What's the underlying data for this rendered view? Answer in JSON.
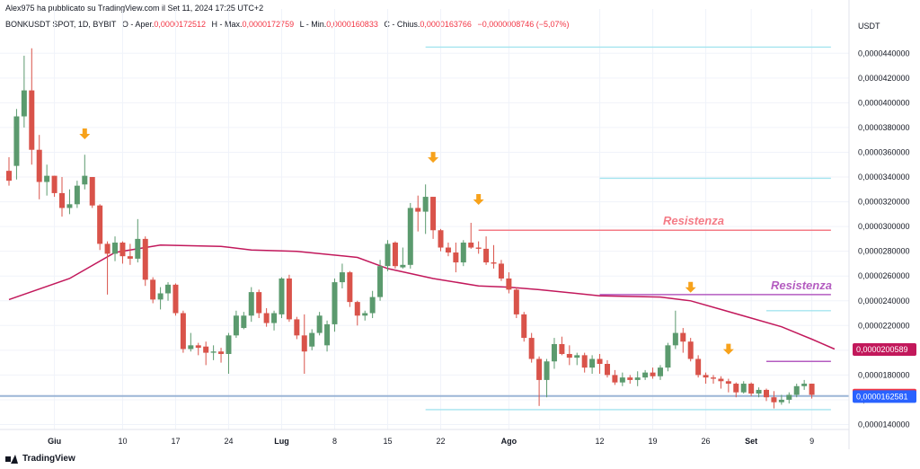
{
  "header": {
    "published_line": "Alex975 ha pubblicato su TradingView.com il Set 11, 2024 17:25 UTC+2",
    "symbol": "BONKUSDT SPOT, 1D, BYBIT",
    "open_label": "O - Aper.",
    "open_value": "0,0000172512",
    "high_label": "H - Max.",
    "high_value": "0,0000172759",
    "low_label": "L - Min.",
    "low_value": "0,0000160833",
    "close_label": "C - Chius.",
    "close_value": "0,0000163766",
    "change_value": "−0,0000008746 (−5,07%)"
  },
  "currency": "USDT",
  "footer": {
    "logo_text": "TradingView"
  },
  "colors": {
    "up": "#5b9a6e",
    "down": "#d9534a",
    "ma": "#c2185b",
    "resistance_red": "#f47b86",
    "resistance_purple": "#b45cc0",
    "support_cyan": "#a4e4ef",
    "arrow": "#f7a21b"
  },
  "chart_data": {
    "type": "candlestick",
    "title": "",
    "ylim": [
      1.36e-05,
      4.54e-05
    ],
    "y_ticks": [
      {
        "v": 1.4e-05,
        "label": "0,0000140000"
      },
      {
        "v": 1.6e-05,
        "label": "0,0000160000"
      },
      {
        "v": 1.8e-05,
        "label": "0,0000180000"
      },
      {
        "v": 2e-05,
        "label": "0,0000200000"
      },
      {
        "v": 2.2e-05,
        "label": "0,0000220000"
      },
      {
        "v": 2.4e-05,
        "label": "0,0000240000"
      },
      {
        "v": 2.6e-05,
        "label": "0,0000260000"
      },
      {
        "v": 2.8e-05,
        "label": "0,0000280000"
      },
      {
        "v": 3e-05,
        "label": "0,0000300000"
      },
      {
        "v": 3.2e-05,
        "label": "0,0000320000"
      },
      {
        "v": 3.4e-05,
        "label": "0,0000340000"
      },
      {
        "v": 3.6e-05,
        "label": "0,0000360000"
      },
      {
        "v": 3.8e-05,
        "label": "0,0000380000"
      },
      {
        "v": 4e-05,
        "label": "0,0000400000"
      },
      {
        "v": 4.2e-05,
        "label": "0,0000420000"
      },
      {
        "v": 4.4e-05,
        "label": "0,0000440000"
      }
    ],
    "x_ticks": [
      {
        "i": 6,
        "label": "Giu"
      },
      {
        "i": 15,
        "label": "10"
      },
      {
        "i": 22,
        "label": "17"
      },
      {
        "i": 29,
        "label": "24"
      },
      {
        "i": 36,
        "label": "Lug"
      },
      {
        "i": 43,
        "label": "8"
      },
      {
        "i": 50,
        "label": "15"
      },
      {
        "i": 57,
        "label": "22"
      },
      {
        "i": 66,
        "label": "Ago"
      },
      {
        "i": 78,
        "label": "12"
      },
      {
        "i": 85,
        "label": "19"
      },
      {
        "i": 92,
        "label": "26"
      },
      {
        "i": 98,
        "label": "Set"
      },
      {
        "i": 106,
        "label": "9"
      }
    ],
    "candles": [
      [
        3.45e-05,
        3.56e-05,
        3.33e-05,
        3.37e-05
      ],
      [
        3.49e-05,
        3.95e-05,
        3.38e-05,
        3.89e-05
      ],
      [
        3.89e-05,
        4.38e-05,
        3.8e-05,
        4.1e-05
      ],
      [
        4.1e-05,
        4.44e-05,
        3.5e-05,
        3.62e-05
      ],
      [
        3.62e-05,
        3.74e-05,
        3.22e-05,
        3.36e-05
      ],
      [
        3.36e-05,
        3.5e-05,
        3.25e-05,
        3.41e-05
      ],
      [
        3.41e-05,
        3.41e-05,
        3.24e-05,
        3.27e-05
      ],
      [
        3.27e-05,
        3.4e-05,
        3.08e-05,
        3.15e-05
      ],
      [
        3.15e-05,
        3.3e-05,
        3.1e-05,
        3.18e-05
      ],
      [
        3.18e-05,
        3.37e-05,
        3.15e-05,
        3.33e-05
      ],
      [
        3.34e-05,
        3.58e-05,
        3.3e-05,
        3.41e-05
      ],
      [
        3.4e-05,
        3.4e-05,
        3.15e-05,
        3.17e-05
      ],
      [
        3.17e-05,
        3.18e-05,
        2.81e-05,
        2.86e-05
      ],
      [
        2.86e-05,
        2.88e-05,
        2.45e-05,
        2.78e-05
      ],
      [
        2.78e-05,
        2.92e-05,
        2.72e-05,
        2.87e-05
      ],
      [
        2.87e-05,
        2.88e-05,
        2.7e-05,
        2.76e-05
      ],
      [
        2.76e-05,
        2.86e-05,
        2.69e-05,
        2.74e-05
      ],
      [
        2.74e-05,
        3.06e-05,
        2.71e-05,
        2.9e-05
      ],
      [
        2.9e-05,
        2.92e-05,
        2.52e-05,
        2.57e-05
      ],
      [
        2.57e-05,
        2.59e-05,
        2.38e-05,
        2.41e-05
      ],
      [
        2.41e-05,
        2.51e-05,
        2.33e-05,
        2.46e-05
      ],
      [
        2.46e-05,
        2.55e-05,
        2.4e-05,
        2.53e-05
      ],
      [
        2.53e-05,
        2.54e-05,
        2.28e-05,
        2.3e-05
      ],
      [
        2.3e-05,
        2.32e-05,
        1.98e-05,
        2.01e-05
      ],
      [
        2.01e-05,
        2.14e-05,
        1.99e-05,
        2.04e-05
      ],
      [
        2.04e-05,
        2.06e-05,
        1.96e-05,
        2.02e-05
      ],
      [
        2.03e-05,
        2.07e-05,
        1.88e-05,
        1.98e-05
      ],
      [
        1.98e-05,
        2.04e-05,
        1.92e-05,
        1.99e-05
      ],
      [
        1.99e-05,
        2.02e-05,
        1.9e-05,
        1.97e-05
      ],
      [
        1.97e-05,
        2.14e-05,
        1.81e-05,
        2.12e-05
      ],
      [
        2.12e-05,
        2.32e-05,
        2.1e-05,
        2.28e-05
      ],
      [
        2.18e-05,
        2.31e-05,
        2.17e-05,
        2.28e-05
      ],
      [
        2.28e-05,
        2.51e-05,
        2.23e-05,
        2.47e-05
      ],
      [
        2.47e-05,
        2.49e-05,
        2.26e-05,
        2.3e-05
      ],
      [
        2.3e-05,
        2.34e-05,
        2.19e-05,
        2.22e-05
      ],
      [
        2.22e-05,
        2.32e-05,
        2.16e-05,
        2.3e-05
      ],
      [
        2.29e-05,
        2.59e-05,
        2.26e-05,
        2.58e-05
      ],
      [
        2.58e-05,
        2.61e-05,
        2.23e-05,
        2.25e-05
      ],
      [
        2.25e-05,
        2.27e-05,
        2.09e-05,
        2.12e-05
      ],
      [
        2.12e-05,
        2.29e-05,
        1.81e-05,
        1.99e-05
      ],
      [
        2.03e-05,
        2.17e-05,
        2e-05,
        2.14e-05
      ],
      [
        2.14e-05,
        2.31e-05,
        2.12e-05,
        2.28e-05
      ],
      [
        2.04e-05,
        2.24e-05,
        1.99e-05,
        2.21e-05
      ],
      [
        2.21e-05,
        2.58e-05,
        2.15e-05,
        2.55e-05
      ],
      [
        2.55e-05,
        2.7e-05,
        2.5e-05,
        2.63e-05
      ],
      [
        2.63e-05,
        2.64e-05,
        2.35e-05,
        2.39e-05
      ],
      [
        2.39e-05,
        2.4e-05,
        2.2e-05,
        2.28e-05
      ],
      [
        2.28e-05,
        2.32e-05,
        2.24e-05,
        2.3e-05
      ],
      [
        2.3e-05,
        2.48e-05,
        2.26e-05,
        2.43e-05
      ],
      [
        2.43e-05,
        2.73e-05,
        2.4e-05,
        2.68e-05
      ],
      [
        2.68e-05,
        2.89e-05,
        2.64e-05,
        2.86e-05
      ],
      [
        2.87e-05,
        2.88e-05,
        2.66e-05,
        2.68e-05
      ],
      [
        2.67e-05,
        2.83e-05,
        2.66e-05,
        2.69e-05
      ],
      [
        2.69e-05,
        3.19e-05,
        2.66e-05,
        3.15e-05
      ],
      [
        3.15e-05,
        3.25e-05,
        2.96e-05,
        3.12e-05
      ],
      [
        3.12e-05,
        3.34e-05,
        2.94e-05,
        3.24e-05
      ],
      [
        3.24e-05,
        3.24e-05,
        2.9e-05,
        2.97e-05
      ],
      [
        2.97e-05,
        2.98e-05,
        2.8e-05,
        2.83e-05
      ],
      [
        2.83e-05,
        2.87e-05,
        2.76e-05,
        2.79e-05
      ],
      [
        2.79e-05,
        2.87e-05,
        2.63e-05,
        2.71e-05
      ],
      [
        2.71e-05,
        2.89e-05,
        2.68e-05,
        2.87e-05
      ],
      [
        2.87e-05,
        3.03e-05,
        2.82e-05,
        2.83e-05
      ],
      [
        2.83e-05,
        2.88e-05,
        2.78e-05,
        2.82e-05
      ],
      [
        2.82e-05,
        2.92e-05,
        2.69e-05,
        2.71e-05
      ],
      [
        2.71e-05,
        2.85e-05,
        2.66e-05,
        2.7e-05
      ],
      [
        2.7e-05,
        2.73e-05,
        2.56e-05,
        2.58e-05
      ],
      [
        2.58e-05,
        2.63e-05,
        2.46e-05,
        2.49e-05
      ],
      [
        2.49e-05,
        2.51e-05,
        2.26e-05,
        2.29e-05
      ],
      [
        2.29e-05,
        2.31e-05,
        2.07e-05,
        2.1e-05
      ],
      [
        2.1e-05,
        2.14e-05,
        1.9e-05,
        1.93e-05
      ],
      [
        1.93e-05,
        1.95e-05,
        1.55e-05,
        1.76e-05
      ],
      [
        1.76e-05,
        1.93e-05,
        1.62e-05,
        1.91e-05
      ],
      [
        1.91e-05,
        2.1e-05,
        1.85e-05,
        2.05e-05
      ],
      [
        2.05e-05,
        2.11e-05,
        1.96e-05,
        1.97e-05
      ],
      [
        1.97e-05,
        2.04e-05,
        1.88e-05,
        1.94e-05
      ],
      [
        1.94e-05,
        1.98e-05,
        1.88e-05,
        1.96e-05
      ],
      [
        1.96e-05,
        1.98e-05,
        1.82e-05,
        1.86e-05
      ],
      [
        1.86e-05,
        1.96e-05,
        1.81e-05,
        1.93e-05
      ],
      [
        1.93e-05,
        1.97e-05,
        1.81e-05,
        1.89e-05
      ],
      [
        1.89e-05,
        1.92e-05,
        1.78e-05,
        1.8e-05
      ],
      [
        1.8e-05,
        1.84e-05,
        1.72e-05,
        1.74e-05
      ],
      [
        1.74e-05,
        1.82e-05,
        1.71e-05,
        1.78e-05
      ],
      [
        1.78e-05,
        1.8e-05,
        1.73e-05,
        1.76e-05
      ],
      [
        1.76e-05,
        1.83e-05,
        1.71e-05,
        1.78e-05
      ],
      [
        1.78e-05,
        1.84e-05,
        1.76e-05,
        1.82e-05
      ],
      [
        1.82e-05,
        1.86e-05,
        1.77e-05,
        1.79e-05
      ],
      [
        1.79e-05,
        1.88e-05,
        1.76e-05,
        1.86e-05
      ],
      [
        1.86e-05,
        2.06e-05,
        1.83e-05,
        2.04e-05
      ],
      [
        2.04e-05,
        2.32e-05,
        2.01e-05,
        2.14e-05
      ],
      [
        2.14e-05,
        2.18e-05,
        1.98e-05,
        2.07e-05
      ],
      [
        2.07e-05,
        2.1e-05,
        1.91e-05,
        1.93e-05
      ],
      [
        1.93e-05,
        1.96e-05,
        1.78e-05,
        1.8e-05
      ],
      [
        1.8e-05,
        1.82e-05,
        1.73e-05,
        1.78e-05
      ],
      [
        1.78e-05,
        1.8e-05,
        1.73e-05,
        1.77e-05
      ],
      [
        1.77e-05,
        1.79e-05,
        1.69e-05,
        1.75e-05
      ],
      [
        1.75e-05,
        1.77e-05,
        1.66e-05,
        1.73e-05
      ],
      [
        1.73e-05,
        1.74e-05,
        1.62e-05,
        1.66e-05
      ],
      [
        1.66e-05,
        1.75e-05,
        1.65e-05,
        1.73e-05
      ],
      [
        1.73e-05,
        1.74e-05,
        1.63e-05,
        1.65e-05
      ],
      [
        1.65e-05,
        1.7e-05,
        1.62e-05,
        1.68e-05
      ],
      [
        1.68e-05,
        1.69e-05,
        1.59e-05,
        1.62e-05
      ],
      [
        1.62e-05,
        1.67e-05,
        1.53e-05,
        1.58e-05
      ],
      [
        1.58e-05,
        1.64e-05,
        1.56e-05,
        1.6e-05
      ],
      [
        1.6e-05,
        1.66e-05,
        1.57e-05,
        1.64e-05
      ],
      [
        1.64e-05,
        1.73e-05,
        1.62e-05,
        1.71e-05
      ],
      [
        1.71e-05,
        1.76e-05,
        1.68e-05,
        1.73e-05
      ],
      [
        1.73e-05,
        1.73e-05,
        1.61e-05,
        1.64e-05
      ]
    ],
    "moving_average": {
      "keys": [
        [
          0,
          2.41e-05
        ],
        [
          8,
          2.58e-05
        ],
        [
          14,
          2.79e-05
        ],
        [
          20,
          2.85e-05
        ],
        [
          28,
          2.84e-05
        ],
        [
          32,
          2.81e-05
        ],
        [
          38,
          2.8e-05
        ],
        [
          46,
          2.75e-05
        ],
        [
          50,
          2.66e-05
        ],
        [
          56,
          2.58e-05
        ],
        [
          62,
          2.52e-05
        ],
        [
          66,
          2.51e-05
        ],
        [
          70,
          2.49e-05
        ],
        [
          78,
          2.44e-05
        ],
        [
          86,
          2.43e-05
        ],
        [
          90,
          2.4e-05
        ],
        [
          94,
          2.33e-05
        ],
        [
          98,
          2.26e-05
        ],
        [
          102,
          2.19e-05
        ],
        [
          106,
          2.09e-05
        ],
        [
          109,
          2.01e-05
        ]
      ]
    },
    "lines": [
      {
        "kind": "support",
        "y": 4.45e-05,
        "i_from": 55,
        "i_to": 109
      },
      {
        "kind": "support",
        "y": 3.39e-05,
        "i_from": 78,
        "i_to": 109
      },
      {
        "kind": "resistance",
        "y": 2.97e-05,
        "i_from": 62,
        "i_to": 109,
        "label": "Resistenza"
      },
      {
        "kind": "resistance2",
        "y": 2.45e-05,
        "i_from": 78,
        "i_to": 109,
        "label": "Resistenza"
      },
      {
        "kind": "support",
        "y": 2.32e-05,
        "i_from": 100,
        "i_to": 109
      },
      {
        "kind": "resistance2",
        "y": 1.91e-05,
        "i_from": 100,
        "i_to": 109
      },
      {
        "kind": "support",
        "y": 1.52e-05,
        "i_from": 55,
        "i_to": 109
      },
      {
        "kind": "base",
        "y": 1.63e-05,
        "i_from": 0,
        "i_to": 109
      }
    ],
    "arrows": [
      {
        "i": 10,
        "y": 3.72e-05
      },
      {
        "i": 56,
        "y": 3.53e-05
      },
      {
        "i": 62,
        "y": 3.19e-05
      },
      {
        "i": 90,
        "y": 2.48e-05
      },
      {
        "i": 95,
        "y": 1.98e-05
      }
    ],
    "price_labels": [
      {
        "y": 2.00589e-05,
        "label": "0,0000200589",
        "color": "#c2185b"
      },
      {
        "y": 1.63766e-05,
        "label": "0,0000163766",
        "color": "#f23645"
      },
      {
        "y": 1.62581e-05,
        "label": "0,0000162581",
        "color": "#2962ff"
      }
    ]
  }
}
